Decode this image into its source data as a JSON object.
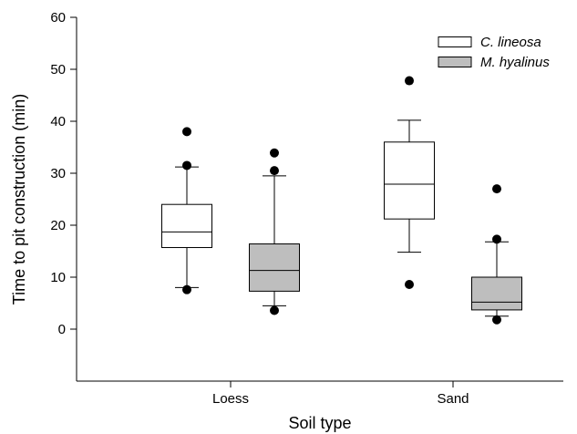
{
  "chart_data": {
    "type": "box",
    "xlabel": "Soil type",
    "ylabel": "Time to pit construction (min)",
    "ylim": [
      -10,
      60
    ],
    "yticks": [
      0,
      10,
      20,
      30,
      40,
      50,
      60
    ],
    "categories": [
      "Loess",
      "Sand"
    ],
    "legend_position": "top-right",
    "grid": false,
    "series": [
      {
        "name": "C. lineosa",
        "color": "#ffffff",
        "boxes": [
          {
            "category": "Loess",
            "whisker_low": 8,
            "q1": 15.7,
            "median": 18.7,
            "q3": 24,
            "whisker_high": 31.2,
            "outliers": [
              7.6,
              31.5,
              38
            ]
          },
          {
            "category": "Sand",
            "whisker_low": 14.8,
            "q1": 21.2,
            "median": 27.9,
            "q3": 36,
            "whisker_high": 40.2,
            "outliers": [
              8.6,
              47.8
            ]
          }
        ]
      },
      {
        "name": "M. hyalinus",
        "color": "#bebebe",
        "boxes": [
          {
            "category": "Loess",
            "whisker_low": 4.5,
            "q1": 7.3,
            "median": 11.3,
            "q3": 16.4,
            "whisker_high": 29.5,
            "outliers": [
              3.6,
              30.5,
              33.9
            ]
          },
          {
            "category": "Sand",
            "whisker_low": 2.5,
            "q1": 3.7,
            "median": 5.2,
            "q3": 10,
            "whisker_high": 16.8,
            "outliers": [
              1.8,
              17.3,
              27
            ]
          }
        ]
      }
    ]
  }
}
